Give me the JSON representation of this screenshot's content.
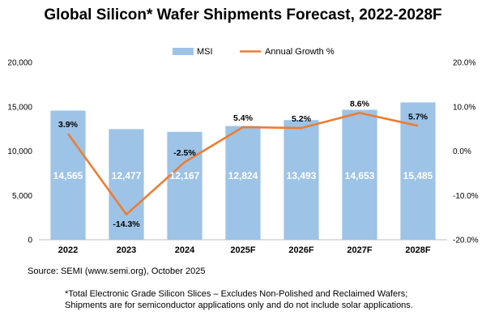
{
  "chart_data": {
    "type": "bar",
    "title": "Global Silicon* Wafer Shipments Forecast, 2022-2028F",
    "categories": [
      "2022",
      "2023",
      "2024",
      "2025F",
      "2026F",
      "2027F",
      "2028F"
    ],
    "series": [
      {
        "name": "MSI",
        "type": "bar",
        "axis": "left",
        "color": "#9dc3e6",
        "values": [
          14565,
          12477,
          12167,
          12824,
          13493,
          14653,
          15485
        ],
        "labels": [
          "14,565",
          "12,477",
          "12,167",
          "12,824",
          "13,493",
          "14,653",
          "15,485"
        ]
      },
      {
        "name": "Annual Growth %",
        "type": "line",
        "axis": "right",
        "color": "#ed7d31",
        "values": [
          3.9,
          -14.3,
          -2.5,
          5.4,
          5.2,
          8.6,
          5.7
        ],
        "labels": [
          "3.9%",
          "-14.3%",
          "-2.5%",
          "5.4%",
          "5.2%",
          "8.6%",
          "5.7%"
        ]
      }
    ],
    "ylim": [
      0,
      20000
    ],
    "y2lim": [
      -20,
      20
    ],
    "yticks": [
      "0",
      "5,000",
      "10,000",
      "15,000",
      "20,000"
    ],
    "y2ticks": [
      "-20.0%",
      "-10.0%",
      "0.0%",
      "10.0%",
      "20.0%"
    ],
    "legend_position": "top-center",
    "grid": false
  },
  "source": "Source: SEMI (www.semi.org), October 2025",
  "footnote": "*Total Electronic Grade Silicon Slices – Excludes Non-Polished and Reclaimed Wafers; Shipments are for semiconductor applications only and do not include solar applications."
}
